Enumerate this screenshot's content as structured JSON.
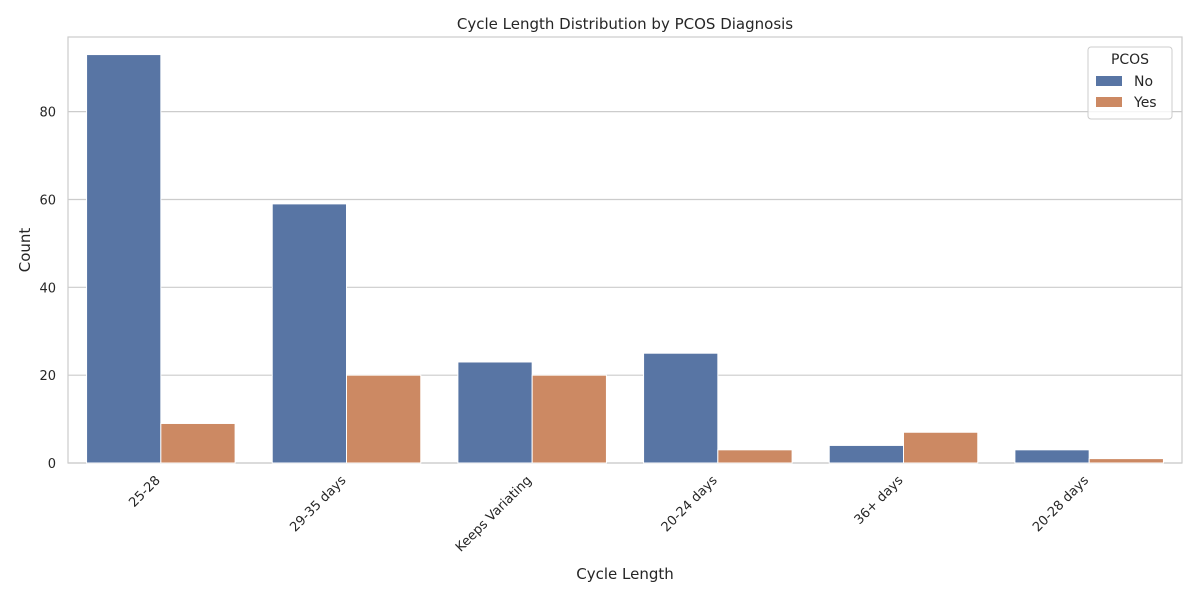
{
  "chart_data": {
    "type": "bar",
    "title": "Cycle Length Distribution by PCOS Diagnosis",
    "xlabel": "Cycle Length",
    "ylabel": "Count",
    "categories": [
      "25-28",
      "29-35 days",
      "Keeps Variating",
      "20-24 days",
      "36+ days",
      "20-28 days"
    ],
    "series": [
      {
        "name": "No",
        "values": [
          93,
          59,
          23,
          25,
          4,
          3
        ],
        "color": "#5875a4"
      },
      {
        "name": "Yes",
        "values": [
          9,
          20,
          20,
          3,
          7,
          1
        ],
        "color": "#cc8963"
      }
    ],
    "ylim": [
      0,
      97
    ],
    "yticks": [
      0,
      20,
      40,
      60,
      80
    ],
    "grid": true,
    "legend": {
      "title": "PCOS",
      "position": "top-right"
    }
  }
}
